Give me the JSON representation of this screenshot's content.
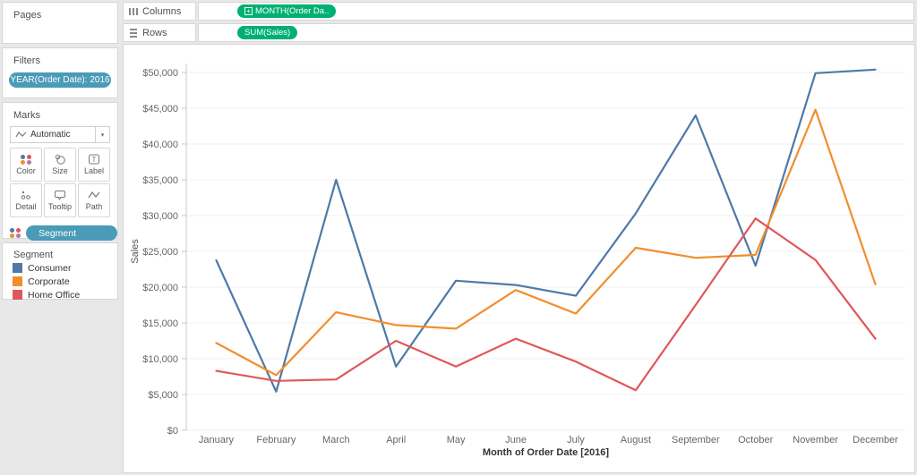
{
  "pages": {
    "title": "Pages"
  },
  "filters": {
    "title": "Filters",
    "pill": "YEAR(Order Date): 2016"
  },
  "marks": {
    "title": "Marks",
    "mark_type": "Automatic",
    "buttons": [
      {
        "label": "Color"
      },
      {
        "label": "Size"
      },
      {
        "label": "Label"
      },
      {
        "label": "Detail"
      },
      {
        "label": "Tooltip"
      },
      {
        "label": "Path"
      }
    ],
    "pill": "Segment"
  },
  "legend": {
    "title": "Segment",
    "items": [
      {
        "label": "Consumer",
        "color": "#4e79a7"
      },
      {
        "label": "Corporate",
        "color": "#f28e2b"
      },
      {
        "label": "Home Office",
        "color": "#e15759"
      }
    ]
  },
  "shelves": {
    "columns": {
      "label": "Columns",
      "pill": "MONTH(Order Da.."
    },
    "rows": {
      "label": "Rows",
      "pill": "SUM(Sales)"
    }
  },
  "colors": {
    "pill_green": "#00b073",
    "pill_teal": "#4a9bb7",
    "grid": "#f0f0f0",
    "axis": "#c9c9c9",
    "tick_text": "#666666"
  },
  "chart_data": {
    "type": "line",
    "x": [
      "January",
      "February",
      "March",
      "April",
      "May",
      "June",
      "July",
      "August",
      "September",
      "October",
      "November",
      "December"
    ],
    "series": [
      {
        "name": "Consumer",
        "color": "#4e79a7",
        "values": [
          23750,
          5400,
          35000,
          8900,
          20900,
          20300,
          18800,
          30300,
          44000,
          23000,
          49900,
          50400
        ]
      },
      {
        "name": "Corporate",
        "color": "#f28e2b",
        "values": [
          12200,
          7700,
          16500,
          14700,
          14200,
          19600,
          16300,
          25500,
          24100,
          24500,
          44800,
          20400
        ]
      },
      {
        "name": "Home Office",
        "color": "#e15759",
        "values": [
          8300,
          6900,
          7100,
          12500,
          8900,
          12800,
          9600,
          5600,
          17500,
          29600,
          23800,
          12800
        ]
      }
    ],
    "xlabel": "Month of Order Date [2016]",
    "ylabel": "Sales",
    "ylim": [
      0,
      50000
    ],
    "yticks": [
      0,
      5000,
      10000,
      15000,
      20000,
      25000,
      30000,
      35000,
      40000,
      45000,
      50000
    ],
    "ytick_labels": [
      "$0",
      "$5,000",
      "$10,000",
      "$15,000",
      "$20,000",
      "$25,000",
      "$30,000",
      "$35,000",
      "$40,000",
      "$45,000",
      "$50,000"
    ],
    "grid": true,
    "legend_position": "left-panel"
  }
}
